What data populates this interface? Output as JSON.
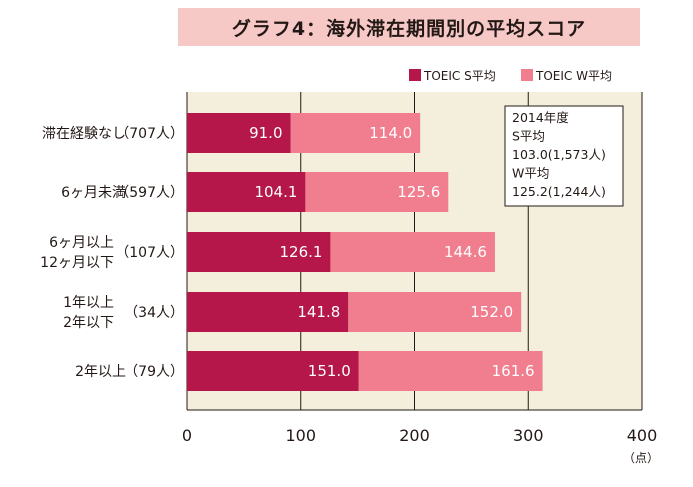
{
  "title": "グラフ4：海外滞在期間別の平均スコア",
  "chart_data": {
    "type": "bar",
    "orientation": "horizontal",
    "stacked": true,
    "categories": [
      [
        "滞在経験なし",
        "（707人）"
      ],
      [
        "6ヶ月未満",
        "（597人）"
      ],
      [
        "6ヶ月以上",
        "12ヶ月以下",
        "（107人）"
      ],
      [
        "1年以上",
        "2年以下",
        "（34人）"
      ],
      [
        "2年以上",
        "（79人）"
      ]
    ],
    "series": [
      {
        "name": "TOEIC S平均",
        "color": "#b5174a",
        "values": [
          91.0,
          104.1,
          126.1,
          141.8,
          151.0
        ]
      },
      {
        "name": "TOEIC W平均",
        "color": "#f07e8e",
        "values": [
          114.0,
          125.6,
          144.6,
          152.0,
          161.6
        ]
      }
    ],
    "xlim": [
      0,
      400
    ],
    "xticks": [
      0,
      100,
      200,
      300,
      400
    ],
    "xunit": "（点）",
    "grid": true,
    "plot_background": "#f3efdc",
    "legend_position": "top-right",
    "annotation": [
      "2014年度",
      "S平均",
      "103.0(1,573人)",
      "W平均",
      "125.2(1,244人)"
    ]
  }
}
